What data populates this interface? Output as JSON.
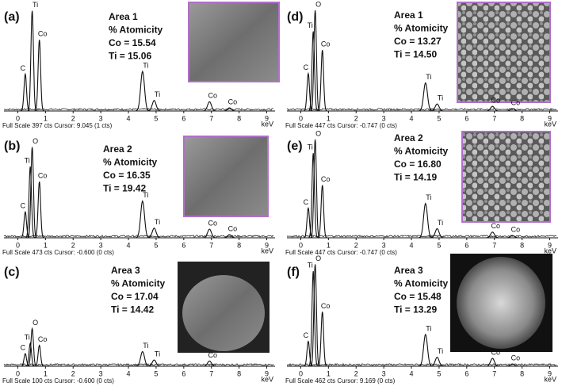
{
  "x_unit": "keV",
  "xlim": [
    -0.5,
    9.3
  ],
  "xticks": [
    0,
    1,
    2,
    3,
    4,
    5,
    6,
    7,
    8,
    9
  ],
  "panels": [
    {
      "letter": "(a)",
      "text": [
        "Area 1",
        "% Atomicity",
        "Co = 15.54",
        "Ti =  15.06"
      ],
      "footer": "Full Scale 397 cts Cursor: 9.045  (1 cts)",
      "full_scale": 397,
      "peaks": [
        {
          "label": "C",
          "kev": 0.27,
          "cts": 140
        },
        {
          "label": "Ti",
          "kev": 0.52,
          "cts": 380
        },
        {
          "label": "Co",
          "kev": 0.78,
          "cts": 270
        },
        {
          "label": "Ti",
          "kev": 4.51,
          "cts": 150
        },
        {
          "label": "Ti",
          "kev": 4.93,
          "cts": 40
        },
        {
          "label": "Co",
          "kev": 6.93,
          "cts": 35
        },
        {
          "label": "Co",
          "kev": 7.65,
          "cts": 12
        }
      ]
    },
    {
      "letter": "(b)",
      "text": [
        "Area 2",
        "% Atomicity",
        "Co = 16.35",
        "Ti = 19.42"
      ],
      "footer": "Full Scale 473 cts Cursor: -0.600  (0 cts)",
      "full_scale": 473,
      "peaks": [
        {
          "label": "C",
          "kev": 0.27,
          "cts": 120
        },
        {
          "label": "Ti",
          "kev": 0.45,
          "cts": 330
        },
        {
          "label": "O",
          "kev": 0.52,
          "cts": 420
        },
        {
          "label": "Co",
          "kev": 0.78,
          "cts": 260
        },
        {
          "label": "Ti",
          "kev": 4.51,
          "cts": 170
        },
        {
          "label": "Ti",
          "kev": 4.93,
          "cts": 45
        },
        {
          "label": "Co",
          "kev": 6.93,
          "cts": 40
        },
        {
          "label": "Co",
          "kev": 7.65,
          "cts": 15
        }
      ]
    },
    {
      "letter": "(c)",
      "text": [
        "Area 3",
        "% Atomicity",
        "Co = 17.04",
        "Ti =  14.42"
      ],
      "footer": "Full Scale 100 cts Cursor: -0.600  (0 cts)",
      "full_scale": 100,
      "peaks": [
        {
          "label": "C",
          "kev": 0.27,
          "cts": 12
        },
        {
          "label": "Ti",
          "kev": 0.45,
          "cts": 22
        },
        {
          "label": "O",
          "kev": 0.52,
          "cts": 36
        },
        {
          "label": "Co",
          "kev": 0.78,
          "cts": 20
        },
        {
          "label": "Ti",
          "kev": 4.51,
          "cts": 14
        },
        {
          "label": "Ti",
          "kev": 4.93,
          "cts": 6
        },
        {
          "label": "Co",
          "kev": 6.93,
          "cts": 5
        }
      ]
    },
    {
      "letter": "(d)",
      "text": [
        "Area 1",
        "% Atomicity",
        "Co = 13.27",
        "Ti =  14.50"
      ],
      "footer": "Full Scale 447 cts Cursor: -0.747  (0 cts)",
      "full_scale": 447,
      "peaks": [
        {
          "label": "C",
          "kev": 0.27,
          "cts": 160
        },
        {
          "label": "Ti",
          "kev": 0.45,
          "cts": 340
        },
        {
          "label": "O",
          "kev": 0.52,
          "cts": 430
        },
        {
          "label": "Co",
          "kev": 0.78,
          "cts": 260
        },
        {
          "label": "Ti",
          "kev": 4.51,
          "cts": 120
        },
        {
          "label": "Ti",
          "kev": 4.93,
          "cts": 30
        },
        {
          "label": "Co",
          "kev": 6.93,
          "cts": 20
        },
        {
          "label": "Co",
          "kev": 7.65,
          "cts": 10
        }
      ]
    },
    {
      "letter": "(e)",
      "text": [
        "Area 2",
        "% Atomicity",
        "Co = 16.80",
        "Ti =  14.19"
      ],
      "footer": "Full Scale 447 cts Cursor: -0.747  (0 cts)",
      "full_scale": 447,
      "peaks": [
        {
          "label": "C",
          "kev": 0.27,
          "cts": 130
        },
        {
          "label": "Ti",
          "kev": 0.45,
          "cts": 370
        },
        {
          "label": "O",
          "kev": 0.52,
          "cts": 430
        },
        {
          "label": "Co",
          "kev": 0.78,
          "cts": 230
        },
        {
          "label": "Ti",
          "kev": 4.51,
          "cts": 150
        },
        {
          "label": "Ti",
          "kev": 4.93,
          "cts": 40
        },
        {
          "label": "Co",
          "kev": 6.93,
          "cts": 25
        },
        {
          "label": "Co",
          "kev": 7.65,
          "cts": 10
        }
      ]
    },
    {
      "letter": "(f)",
      "text": [
        "Area 3",
        "% Atomicity",
        "Co = 15.48",
        "Ti =  13.29"
      ],
      "footer": "Full Scale 462 cts Cursor: 9.169  (0 cts)",
      "full_scale": 462,
      "peaks": [
        {
          "label": "C",
          "kev": 0.27,
          "cts": 110
        },
        {
          "label": "Ti",
          "kev": 0.45,
          "cts": 420
        },
        {
          "label": "O",
          "kev": 0.52,
          "cts": 450
        },
        {
          "label": "Co",
          "kev": 0.78,
          "cts": 240
        },
        {
          "label": "Ti",
          "kev": 4.51,
          "cts": 140
        },
        {
          "label": "Ti",
          "kev": 4.93,
          "cts": 40
        },
        {
          "label": "Co",
          "kev": 6.93,
          "cts": 35
        },
        {
          "label": "Co",
          "kev": 7.65,
          "cts": 10
        }
      ]
    }
  ]
}
